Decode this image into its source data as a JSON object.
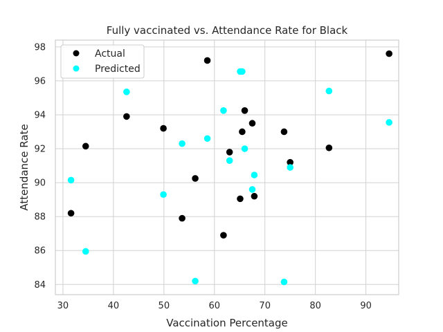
{
  "chart_data": {
    "type": "scatter",
    "title": "Fully vaccinated vs. Attendance Rate for Black",
    "xlabel": "Vaccination Percentage",
    "ylabel": "Attendance Rate",
    "xlim": [
      28.5,
      96.5
    ],
    "ylim": [
      83.4,
      98.4
    ],
    "xticks": [
      30,
      40,
      50,
      60,
      70,
      80,
      90
    ],
    "yticks": [
      84,
      86,
      88,
      90,
      92,
      94,
      96,
      98
    ],
    "grid": true,
    "legend_position": "top-left",
    "series": [
      {
        "name": "Actual",
        "color": "#000000",
        "x": [
          31.6,
          34.5,
          42.6,
          49.9,
          53.6,
          56.2,
          58.6,
          61.8,
          63.0,
          65.1,
          65.5,
          66.0,
          67.5,
          67.9,
          73.8,
          75.0,
          82.7,
          94.6
        ],
        "y": [
          88.2,
          92.15,
          93.9,
          93.2,
          87.9,
          90.25,
          97.2,
          86.9,
          91.8,
          89.05,
          93.0,
          94.25,
          93.5,
          89.2,
          93.0,
          91.2,
          92.05,
          97.6
        ]
      },
      {
        "name": "Predicted",
        "color": "#00ffff",
        "x": [
          31.6,
          34.5,
          42.6,
          49.9,
          53.6,
          56.2,
          58.6,
          61.8,
          63.0,
          65.1,
          65.5,
          66.0,
          67.5,
          67.9,
          73.8,
          75.0,
          82.7,
          94.6
        ],
        "y": [
          90.15,
          85.95,
          95.35,
          89.3,
          92.3,
          84.2,
          92.6,
          94.25,
          91.3,
          96.55,
          96.55,
          92.0,
          89.6,
          90.45,
          84.15,
          90.9,
          95.4,
          93.55
        ]
      }
    ]
  }
}
